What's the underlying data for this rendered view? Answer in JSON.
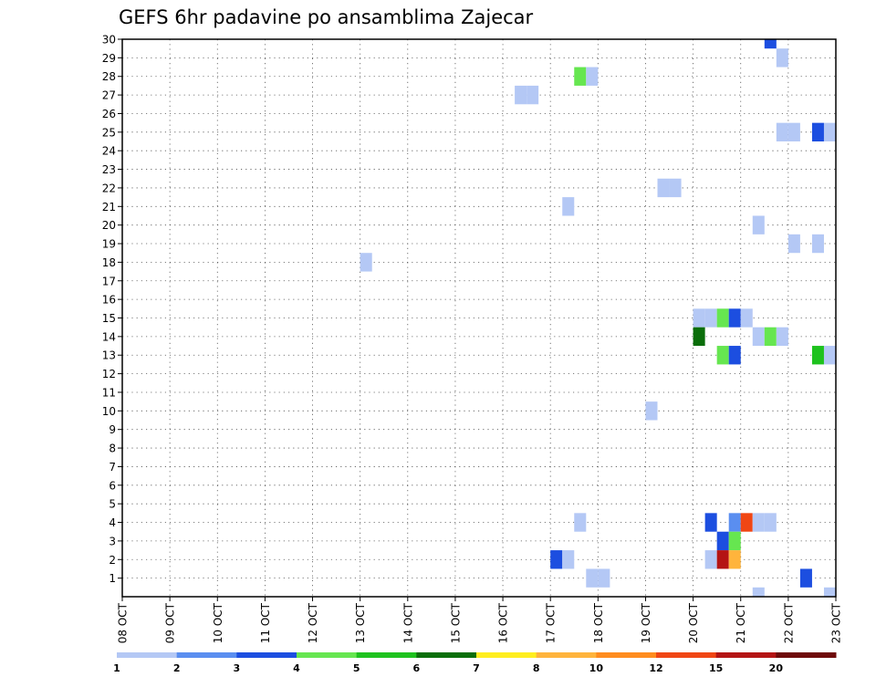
{
  "chart_data": {
    "type": "heatmap",
    "title": "GEFS 6hr padavine po ansamblima Zajecar",
    "xlabel": "",
    "ylabel": "",
    "x_tick_labels": [
      "08 OCT",
      "09 OCT",
      "10 OCT",
      "11 OCT",
      "12 OCT",
      "13 OCT",
      "14 OCT",
      "15 OCT",
      "16 OCT",
      "17 OCT",
      "18 OCT",
      "19 OCT",
      "20 OCT",
      "21 OCT",
      "22 OCT",
      "23 OCT"
    ],
    "y_tick_labels": [
      "1",
      "2",
      "3",
      "4",
      "5",
      "6",
      "7",
      "8",
      "9",
      "10",
      "11",
      "12",
      "13",
      "14",
      "15",
      "16",
      "17",
      "18",
      "19",
      "20",
      "21",
      "22",
      "23",
      "24",
      "25",
      "26",
      "27",
      "28",
      "29",
      "30"
    ],
    "x_range_days": [
      0,
      15
    ],
    "y_range": [
      0,
      30
    ],
    "grid": true,
    "legend_placement": "bottom",
    "legend": {
      "labels": [
        "1",
        "2",
        "3",
        "4",
        "5",
        "6",
        "7",
        "8",
        "10",
        "12",
        "15",
        "20"
      ],
      "colors": [
        "#b4c8f5",
        "#5a8ef0",
        "#1c4ee0",
        "#66e650",
        "#1ec21e",
        "#0a6e0a",
        "#ffee1e",
        "#ffb43c",
        "#ff8c1e",
        "#f04614",
        "#b41414",
        "#6e0a0a"
      ]
    },
    "cells": [
      {
        "day": 13.625,
        "member": 30,
        "color": "#1c4ee0"
      },
      {
        "day": 13.875,
        "member": 29,
        "color": "#b4c8f5"
      },
      {
        "day": 9.625,
        "member": 28,
        "color": "#66e650"
      },
      {
        "day": 9.875,
        "member": 28,
        "color": "#b4c8f5"
      },
      {
        "day": 8.375,
        "member": 27,
        "color": "#b4c8f5"
      },
      {
        "day": 8.625,
        "member": 27,
        "color": "#b4c8f5"
      },
      {
        "day": 13.875,
        "member": 25,
        "color": "#b4c8f5"
      },
      {
        "day": 14.125,
        "member": 25,
        "color": "#b4c8f5"
      },
      {
        "day": 14.625,
        "member": 25,
        "color": "#1c4ee0"
      },
      {
        "day": 14.875,
        "member": 25,
        "color": "#b4c8f5"
      },
      {
        "day": 11.375,
        "member": 22,
        "color": "#b4c8f5"
      },
      {
        "day": 11.625,
        "member": 22,
        "color": "#b4c8f5"
      },
      {
        "day": 9.375,
        "member": 21,
        "color": "#b4c8f5"
      },
      {
        "day": 13.375,
        "member": 20,
        "color": "#b4c8f5"
      },
      {
        "day": 14.125,
        "member": 19,
        "color": "#b4c8f5"
      },
      {
        "day": 14.625,
        "member": 19,
        "color": "#b4c8f5"
      },
      {
        "day": 5.125,
        "member": 18,
        "color": "#b4c8f5"
      },
      {
        "day": 12.125,
        "member": 15,
        "color": "#b4c8f5"
      },
      {
        "day": 12.375,
        "member": 15,
        "color": "#b4c8f5"
      },
      {
        "day": 12.625,
        "member": 15,
        "color": "#66e650"
      },
      {
        "day": 12.875,
        "member": 15,
        "color": "#1c4ee0"
      },
      {
        "day": 13.125,
        "member": 15,
        "color": "#b4c8f5"
      },
      {
        "day": 12.125,
        "member": 14,
        "color": "#0a6e0a"
      },
      {
        "day": 13.375,
        "member": 14,
        "color": "#b4c8f5"
      },
      {
        "day": 13.625,
        "member": 14,
        "color": "#66e650"
      },
      {
        "day": 13.875,
        "member": 14,
        "color": "#b4c8f5"
      },
      {
        "day": 12.625,
        "member": 13,
        "color": "#66e650"
      },
      {
        "day": 12.875,
        "member": 13,
        "color": "#1c4ee0"
      },
      {
        "day": 14.625,
        "member": 13,
        "color": "#1ec21e"
      },
      {
        "day": 14.875,
        "member": 13,
        "color": "#b4c8f5"
      },
      {
        "day": 11.125,
        "member": 10,
        "color": "#b4c8f5"
      },
      {
        "day": 9.625,
        "member": 4,
        "color": "#b4c8f5"
      },
      {
        "day": 12.375,
        "member": 4,
        "color": "#1c4ee0"
      },
      {
        "day": 12.875,
        "member": 4,
        "color": "#5a8ef0"
      },
      {
        "day": 13.125,
        "member": 4,
        "color": "#f04614"
      },
      {
        "day": 13.375,
        "member": 4,
        "color": "#b4c8f5"
      },
      {
        "day": 13.625,
        "member": 4,
        "color": "#b4c8f5"
      },
      {
        "day": 12.625,
        "member": 3,
        "color": "#1c4ee0"
      },
      {
        "day": 12.875,
        "member": 3,
        "color": "#66e650"
      },
      {
        "day": 9.125,
        "member": 2,
        "color": "#1c4ee0"
      },
      {
        "day": 9.375,
        "member": 2,
        "color": "#b4c8f5"
      },
      {
        "day": 12.375,
        "member": 2,
        "color": "#b4c8f5"
      },
      {
        "day": 12.625,
        "member": 2,
        "color": "#b41414"
      },
      {
        "day": 12.875,
        "member": 2,
        "color": "#ffb43c"
      },
      {
        "day": 9.875,
        "member": 1,
        "color": "#b4c8f5"
      },
      {
        "day": 10.125,
        "member": 1,
        "color": "#b4c8f5"
      },
      {
        "day": 14.375,
        "member": 1,
        "color": "#1c4ee0"
      },
      {
        "day": 13.375,
        "member": 0,
        "color": "#b4c8f5"
      },
      {
        "day": 14.875,
        "member": 0,
        "color": "#b4c8f5"
      }
    ]
  }
}
